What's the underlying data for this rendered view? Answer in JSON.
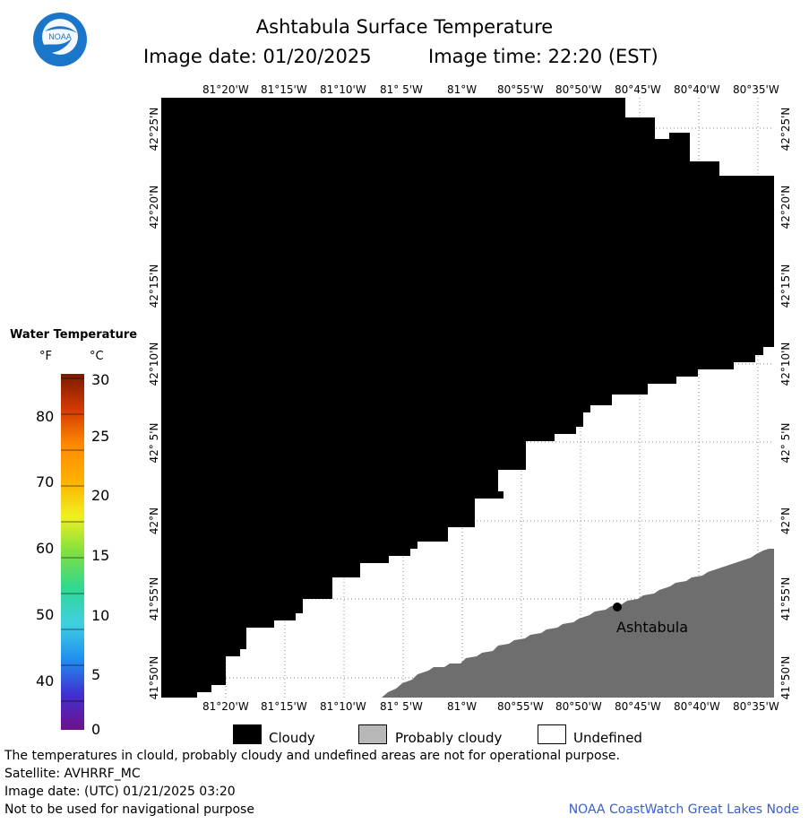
{
  "header": {
    "title": "Ashtabula Surface Temperature",
    "image_date_label": "Image date: 01/20/2025",
    "image_time_label": "Image time: 22:20 (EST)"
  },
  "logo": {
    "text": "NOAA",
    "colors": {
      "outer": "#1a76c8",
      "inner": "#f4f8ff",
      "bird": "#1a76c8"
    }
  },
  "longitude_labels": [
    "81°20'W",
    "81°15'W",
    "81°10'W",
    "81° 5'W",
    "81°W",
    "80°55'W",
    "80°50'W",
    "80°45'W",
    "80°40'W",
    "80°35'W"
  ],
  "latitude_labels": [
    "42°25'N",
    "42°20'N",
    "42°15'N",
    "42°10'N",
    "42° 5'N",
    "42°N",
    "41°55'N",
    "41°50'N"
  ],
  "map": {
    "place_label": "Ashtabula",
    "colors": {
      "cloudy": "#000000",
      "probably_cloudy": "#6e6e6e",
      "undefined": "#ffffff",
      "grid": "#8a8a8a"
    }
  },
  "colorbar": {
    "title": "Water Temperature",
    "unit_f": "°F",
    "unit_c": "°C",
    "fahrenheit_ticks": [
      "80",
      "70",
      "60",
      "50",
      "40"
    ],
    "celsius_ticks": [
      "30",
      "25",
      "20",
      "15",
      "10",
      "5",
      "0"
    ]
  },
  "legend": {
    "cloudy": "Cloudy",
    "probably_cloudy": "Probably cloudy",
    "undefined": "Undefined",
    "colors": {
      "cloudy": "#000000",
      "probably_cloudy": "#b8b8b8",
      "undefined": "#ffffff"
    }
  },
  "footer": {
    "note": "The temperatures in clould, probably cloudy and undefined areas are not for operational purpose.",
    "satellite": "Satellite: AVHRRF_MC",
    "utc_date": "Image date: (UTC) 01/21/2025  03:20",
    "navigation": "Not to be used for navigational purpose",
    "credit": "NOAA CoastWatch Great Lakes Node",
    "credit_color": "#3a5fcd"
  }
}
